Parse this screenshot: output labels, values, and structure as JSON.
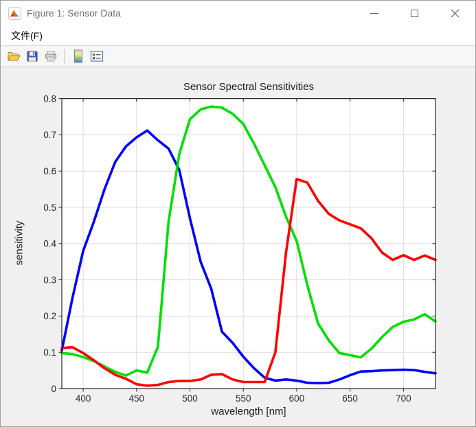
{
  "window": {
    "title": "Figure 1: Sensor Data"
  },
  "menu": {
    "file_label": "文件(F)"
  },
  "toolbar": {
    "buttons": [
      "open",
      "save",
      "print",
      "colorbar",
      "legend"
    ]
  },
  "chart_data": {
    "type": "line",
    "title": "Sensor Spectral Sensitivities",
    "xlabel": "wavelength [nm]",
    "ylabel": "sensitivity",
    "xlim": [
      380,
      730
    ],
    "ylim": [
      0,
      0.8
    ],
    "xticks": [
      400,
      450,
      500,
      550,
      600,
      650,
      700
    ],
    "xtick_labels": [
      "400",
      "450",
      "500",
      "550",
      "600",
      "650",
      "700"
    ],
    "yticks": [
      0,
      0.1,
      0.2,
      0.3,
      0.4,
      0.5,
      0.6,
      0.7,
      0.8
    ],
    "ytick_labels": [
      "0",
      "0.1",
      "0.2",
      "0.3",
      "0.4",
      "0.5",
      "0.6",
      "0.7",
      "0.8"
    ],
    "grid": true,
    "grid_color": "#dcdcdc",
    "axis_color": "#262626",
    "x": [
      380,
      390,
      400,
      410,
      420,
      430,
      440,
      450,
      460,
      470,
      480,
      490,
      500,
      510,
      520,
      530,
      540,
      550,
      560,
      570,
      580,
      590,
      600,
      610,
      620,
      630,
      640,
      650,
      660,
      670,
      680,
      690,
      700,
      710,
      720,
      730
    ],
    "series": [
      {
        "name": "blue",
        "color": "#0000ff",
        "values": [
          0.105,
          0.25,
          0.38,
          0.46,
          0.55,
          0.625,
          0.668,
          0.693,
          0.712,
          0.685,
          0.662,
          0.603,
          0.47,
          0.35,
          0.275,
          0.157,
          0.126,
          0.088,
          0.056,
          0.03,
          0.022,
          0.025,
          0.022,
          0.016,
          0.015,
          0.016,
          0.025,
          0.037,
          0.047,
          0.048,
          0.05,
          0.051,
          0.052,
          0.051,
          0.046,
          0.042
        ]
      },
      {
        "name": "green",
        "color": "#00e000",
        "values": [
          0.098,
          0.095,
          0.087,
          0.076,
          0.061,
          0.046,
          0.036,
          0.05,
          0.044,
          0.115,
          0.46,
          0.647,
          0.743,
          0.77,
          0.778,
          0.775,
          0.758,
          0.73,
          0.676,
          0.616,
          0.556,
          0.474,
          0.407,
          0.285,
          0.18,
          0.133,
          0.098,
          0.092,
          0.086,
          0.11,
          0.142,
          0.17,
          0.184,
          0.191,
          0.205,
          0.185
        ]
      },
      {
        "name": "red",
        "color": "#ff0000",
        "values": [
          0.112,
          0.114,
          0.098,
          0.078,
          0.056,
          0.038,
          0.027,
          0.012,
          0.008,
          0.01,
          0.018,
          0.021,
          0.021,
          0.025,
          0.038,
          0.04,
          0.025,
          0.018,
          0.018,
          0.018,
          0.1,
          0.375,
          0.578,
          0.568,
          0.518,
          0.482,
          0.464,
          0.453,
          0.442,
          0.415,
          0.375,
          0.355,
          0.368,
          0.355,
          0.367,
          0.355
        ]
      }
    ]
  }
}
